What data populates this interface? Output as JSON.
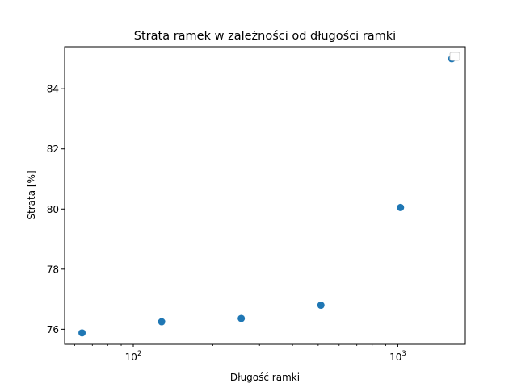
{
  "chart_data": {
    "type": "scatter",
    "title": "Strata ramek w zależności od długości ramki",
    "xlabel": "Długość ramki",
    "ylabel": "Strata [%]",
    "xscale": "log",
    "xlim": [
      55,
      1800
    ],
    "ylim": [
      75.5,
      85.4
    ],
    "x_ticks": [
      {
        "value": 100,
        "base": "10",
        "exp": "2"
      },
      {
        "value": 1000,
        "base": "10",
        "exp": "3"
      }
    ],
    "y_ticks": [
      {
        "value": 76,
        "label": "76"
      },
      {
        "value": 78,
        "label": "78"
      },
      {
        "value": 80,
        "label": "80"
      },
      {
        "value": 82,
        "label": "82"
      },
      {
        "value": 84,
        "label": "84"
      }
    ],
    "series": [
      {
        "name": "",
        "color": "#1f77b4",
        "x": [
          64,
          128,
          256,
          512,
          1024,
          1600
        ],
        "y": [
          75.88,
          76.25,
          76.36,
          76.8,
          80.05,
          85.0
        ]
      }
    ],
    "legend": "top-right"
  }
}
